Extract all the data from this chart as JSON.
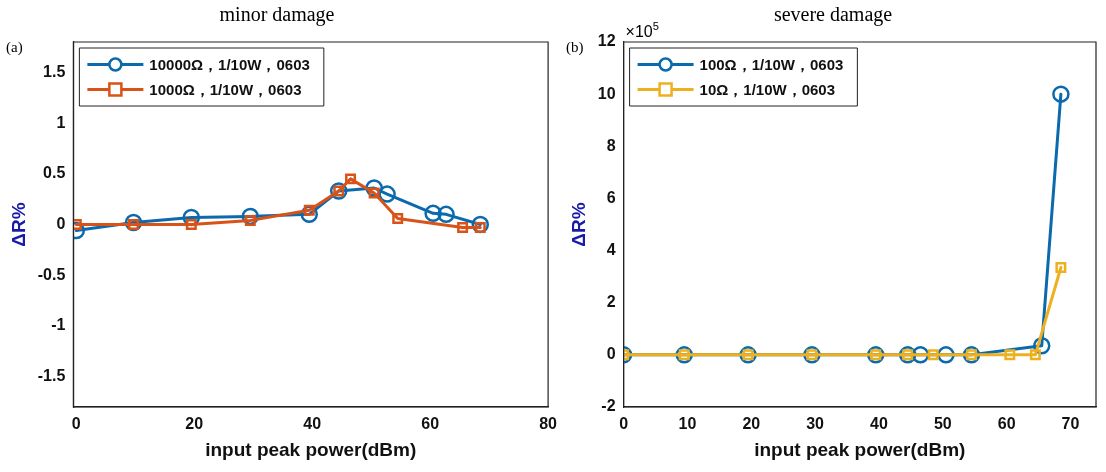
{
  "chart_data": [
    {
      "type": "line",
      "title": "minor damage",
      "xlabel": "input peak power(dBm)",
      "ylabel": "ΔR%",
      "annotations": [
        "(a)"
      ],
      "xlim": [
        -0.5,
        80
      ],
      "xticks": [
        0,
        20,
        40,
        60,
        80
      ],
      "ylim": [
        -1.8,
        1.8
      ],
      "yticks": [
        -1.5,
        -1,
        -0.5,
        0,
        0.5,
        1,
        1.5
      ],
      "grid": false,
      "legend": "top left",
      "line_style": "solid",
      "series": [
        {
          "name": "10000Ω，1/10W，0603",
          "color": "#0a6aad",
          "marker": "circle",
          "x": [
            0,
            9.7,
            19.5,
            29.5,
            39.5,
            44.5,
            50.5,
            52.7,
            60.5,
            62.7,
            68.5
          ],
          "values": [
            -0.06,
            0.02,
            0.07,
            0.08,
            0.1,
            0.33,
            0.36,
            0.3,
            0.11,
            0.1,
            0
          ]
        },
        {
          "name": "1000Ω，1/10W，0603",
          "color": "#d95319",
          "marker": "square",
          "x": [
            0,
            9.7,
            19.5,
            29.5,
            39.5,
            44.5,
            46.5,
            50.5,
            54.5,
            65.5,
            68.5
          ],
          "values": [
            0,
            0,
            0,
            0.04,
            0.14,
            0.33,
            0.45,
            0.31,
            0.06,
            -0.03,
            -0.03
          ]
        }
      ]
    },
    {
      "type": "line",
      "title": "severe damage",
      "xlabel": "input peak power(dBm)",
      "ylabel": "ΔR%",
      "annotations": [
        "(b)",
        "×10$^{5}$"
      ],
      "xlim": [
        0,
        74
      ],
      "xticks": [
        0,
        10,
        20,
        30,
        40,
        50,
        60,
        70
      ],
      "ylim": [
        -2,
        12
      ],
      "yticks": [
        -2,
        0,
        2,
        4,
        6,
        8,
        10,
        12
      ],
      "grid": false,
      "legend": "top left",
      "line_style": "solid",
      "series": [
        {
          "name": "100Ω，1/10W，0603",
          "color": "#0a6aad",
          "marker": "circle",
          "x": [
            0,
            9.5,
            19.5,
            29.5,
            39.5,
            44.5,
            46.5,
            50.5,
            54.5,
            65.5,
            68.5
          ],
          "values": [
            0,
            0,
            0,
            0,
            0,
            0,
            0,
            0,
            0,
            0.35,
            10
          ]
        },
        {
          "name": "10Ω，1/10W，0603",
          "color": "#edb120",
          "marker": "square",
          "x": [
            0,
            9.5,
            19.5,
            29.5,
            39.5,
            44.5,
            48.5,
            54.5,
            60.5,
            64.5,
            68.5
          ],
          "values": [
            0,
            0,
            0,
            0,
            0,
            0,
            0,
            0,
            0,
            0,
            3.35
          ]
        }
      ]
    }
  ]
}
